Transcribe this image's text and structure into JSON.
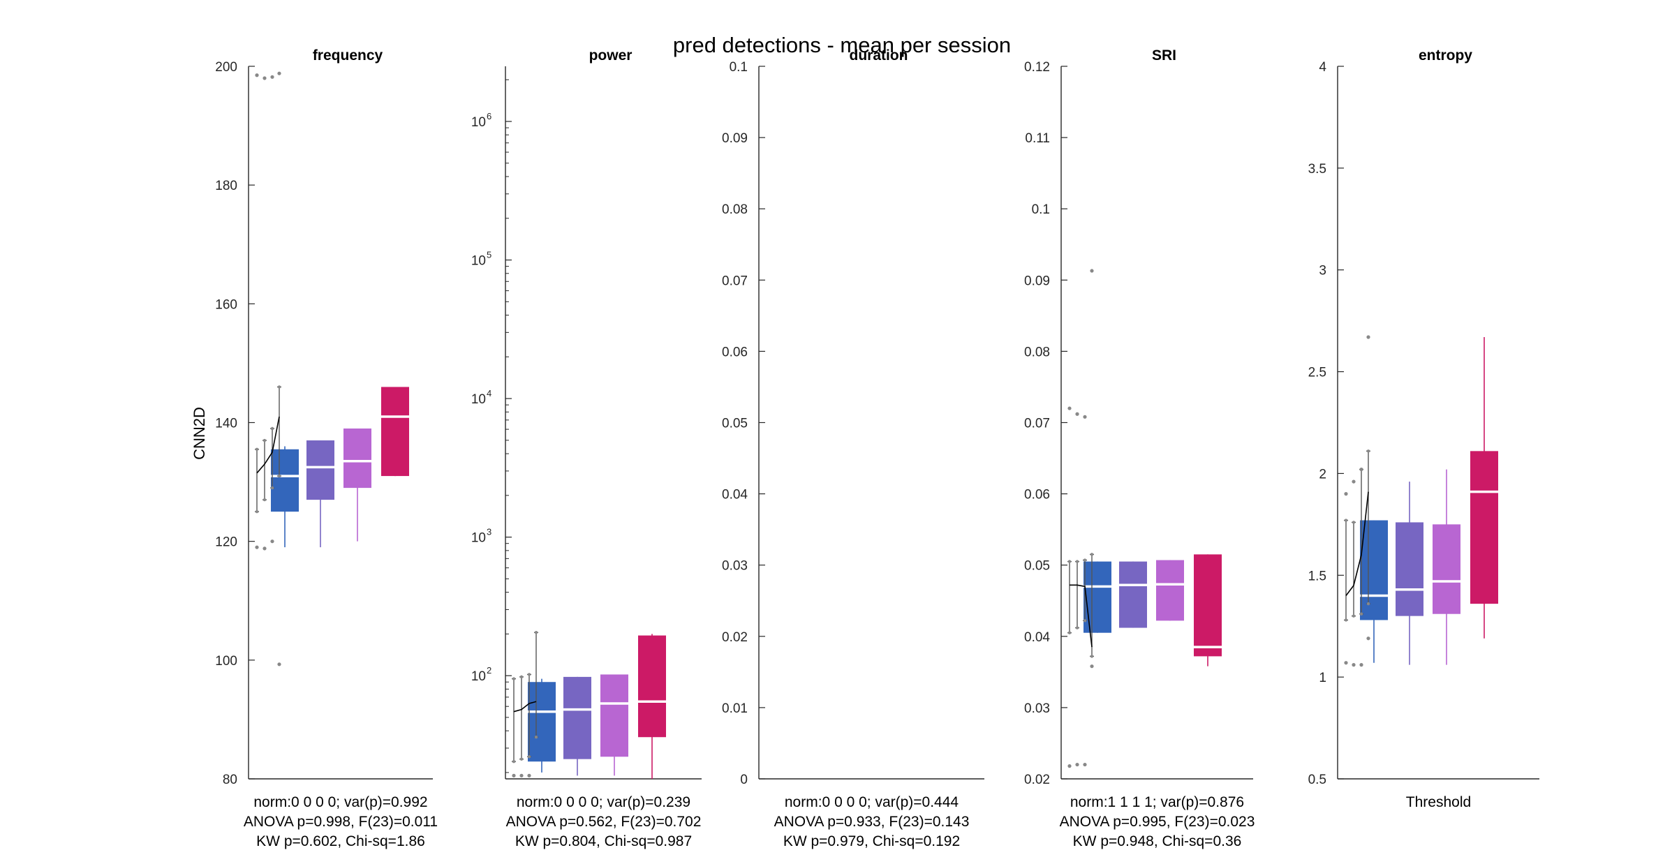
{
  "figure": {
    "title": "pred detections - mean per session",
    "ylabel": "CNN2D"
  },
  "colors": {
    "group1": "#3366bb",
    "group2": "#7766c2",
    "group3": "#b866d2",
    "group4": "#cc1a66",
    "axis": "#262626",
    "median": "#ffffff",
    "dots": "#888888"
  },
  "chart_data": [
    {
      "type": "box",
      "title": "frequency",
      "ylabel": "CNN2D",
      "scale": "linear",
      "ylim": [
        80,
        200
      ],
      "yticks": [
        80,
        100,
        120,
        140,
        160,
        180,
        200
      ],
      "ytick_labels": [
        "80",
        "100",
        "120",
        "140",
        "160",
        "180",
        "200"
      ],
      "boxes": [
        {
          "q1": 125,
          "median": 131,
          "q3": 135.5,
          "wlo": 119,
          "whi": 136
        },
        {
          "q1": 127,
          "median": 132.5,
          "q3": 137,
          "wlo": 119,
          "whi": 137
        },
        {
          "q1": 129,
          "median": 133.5,
          "q3": 139,
          "wlo": 120,
          "whi": 139
        },
        {
          "q1": 131,
          "median": 141,
          "q3": 146,
          "wlo": 131,
          "whi": 146
        }
      ],
      "session_errorbars": [
        {
          "lo": 125,
          "hi": 135.5
        },
        {
          "lo": 127,
          "hi": 137
        },
        {
          "lo": 129,
          "hi": 139
        },
        {
          "lo": 131,
          "hi": 146
        }
      ],
      "trend": [
        131.5,
        133,
        135,
        141
      ],
      "outliers": [
        {
          "g": 0,
          "y": 198.5
        },
        {
          "g": 1,
          "y": 198
        },
        {
          "g": 2,
          "y": 198.2
        },
        {
          "g": 3,
          "y": 198.8
        },
        {
          "g": 0,
          "y": 119
        },
        {
          "g": 1,
          "y": 118.8
        },
        {
          "g": 2,
          "y": 120
        },
        {
          "g": 3,
          "y": 99.3
        }
      ],
      "annotation": [
        "norm:0  0  0  0; var(p)=0.992",
        "ANOVA p=0.998, F(23)=0.011",
        "KW p=0.602, Chi-sq=1.86"
      ]
    },
    {
      "type": "box",
      "title": "power",
      "scale": "log",
      "ylim": [
        18,
        2500000
      ],
      "yticks": [
        100,
        1000,
        10000,
        100000,
        1000000
      ],
      "ytick_labels": [
        "10",
        "10",
        "10",
        "10",
        "10"
      ],
      "ytick_exponents": [
        "2",
        "3",
        "4",
        "5",
        "6"
      ],
      "boxes": [
        {
          "q1": 24,
          "median": 55,
          "q3": 90,
          "wlo": 20,
          "whi": 95
        },
        {
          "q1": 25,
          "median": 57,
          "q3": 98,
          "wlo": 19,
          "whi": 98
        },
        {
          "q1": 26,
          "median": 63,
          "q3": 102,
          "wlo": 19,
          "whi": 102
        },
        {
          "q1": 36,
          "median": 65,
          "q3": 195,
          "wlo": 18,
          "whi": 200
        }
      ],
      "session_errorbars": [
        {
          "lo": 24,
          "hi": 95
        },
        {
          "lo": 25,
          "hi": 98
        },
        {
          "lo": 26,
          "hi": 102
        },
        {
          "lo": 36,
          "hi": 205
        }
      ],
      "trend": [
        55,
        57,
        63,
        65
      ],
      "outliers": [
        {
          "g": 0,
          "y": 19
        },
        {
          "g": 1,
          "y": 19
        },
        {
          "g": 2,
          "y": 19
        }
      ],
      "annotation": [
        "norm:0  0  0  0; var(p)=0.239",
        "ANOVA p=0.562, F(23)=0.702",
        "KW p=0.804, Chi-sq=0.987"
      ]
    },
    {
      "type": "box",
      "title": "duration",
      "scale": "linear",
      "ylim": [
        0,
        0.1
      ],
      "yticks": [
        0,
        0.01,
        0.02,
        0.03,
        0.04,
        0.05,
        0.06,
        0.07,
        0.08,
        0.09,
        0.1
      ],
      "ytick_labels": [
        "0",
        "0.01",
        "0.02",
        "0.03",
        "0.04",
        "0.05",
        "0.06",
        "0.07",
        "0.08",
        "0.09",
        "0.1"
      ],
      "boxes": [],
      "session_errorbars": [],
      "trend": [],
      "outliers": [],
      "annotation": [
        "norm:0  0  0  0; var(p)=0.444",
        "ANOVA p=0.933, F(23)=0.143",
        "KW p=0.979, Chi-sq=0.192"
      ]
    },
    {
      "type": "box",
      "title": "SRI",
      "scale": "linear",
      "ylim": [
        0.02,
        0.12
      ],
      "yticks": [
        0.02,
        0.03,
        0.04,
        0.05,
        0.06,
        0.07,
        0.08,
        0.09,
        0.1,
        0.11,
        0.12
      ],
      "ytick_labels": [
        "0.02",
        "0.03",
        "0.04",
        "0.05",
        "0.06",
        "0.07",
        "0.08",
        "0.09",
        "0.1",
        "0.11",
        "0.12"
      ],
      "boxes": [
        {
          "q1": 0.0405,
          "median": 0.047,
          "q3": 0.0505,
          "wlo": 0.0405,
          "whi": 0.0505
        },
        {
          "q1": 0.0412,
          "median": 0.0472,
          "q3": 0.0505,
          "wlo": 0.0412,
          "whi": 0.0505
        },
        {
          "q1": 0.0422,
          "median": 0.0473,
          "q3": 0.0507,
          "wlo": 0.0422,
          "whi": 0.0507
        },
        {
          "q1": 0.0372,
          "median": 0.0385,
          "q3": 0.0515,
          "wlo": 0.0358,
          "whi": 0.0515
        }
      ],
      "session_errorbars": [
        {
          "lo": 0.0405,
          "hi": 0.0505
        },
        {
          "lo": 0.0412,
          "hi": 0.0505
        },
        {
          "lo": 0.0422,
          "hi": 0.0507
        },
        {
          "lo": 0.0372,
          "hi": 0.0515
        }
      ],
      "trend": [
        0.0472,
        0.0472,
        0.047,
        0.0385
      ],
      "outliers": [
        {
          "g": 0,
          "y": 0.072
        },
        {
          "g": 1,
          "y": 0.0712
        },
        {
          "g": 2,
          "y": 0.0708
        },
        {
          "g": 0,
          "y": 0.0218
        },
        {
          "g": 1,
          "y": 0.022
        },
        {
          "g": 2,
          "y": 0.022
        },
        {
          "g": 3,
          "y": 0.0913
        },
        {
          "g": 3,
          "y": 0.0358
        }
      ],
      "annotation": [
        "norm:1  1  1  1; var(p)=0.876",
        "ANOVA p=0.995, F(23)=0.023",
        "KW p=0.948, Chi-sq=0.36"
      ]
    },
    {
      "type": "box",
      "title": "entropy",
      "xlabel": "Threshold",
      "scale": "linear",
      "ylim": [
        0.5,
        4
      ],
      "yticks": [
        0.5,
        1,
        1.5,
        2,
        2.5,
        3,
        3.5,
        4
      ],
      "ytick_labels": [
        "0.5",
        "1",
        "1.5",
        "2",
        "2.5",
        "3",
        "3.5",
        "4"
      ],
      "boxes": [
        {
          "q1": 1.28,
          "median": 1.4,
          "q3": 1.77,
          "wlo": 1.07,
          "whi": 1.77
        },
        {
          "q1": 1.3,
          "median": 1.43,
          "q3": 1.76,
          "wlo": 1.06,
          "whi": 1.96
        },
        {
          "q1": 1.31,
          "median": 1.47,
          "q3": 1.75,
          "wlo": 1.06,
          "whi": 2.02
        },
        {
          "q1": 1.36,
          "median": 1.91,
          "q3": 2.11,
          "wlo": 1.19,
          "whi": 2.67
        }
      ],
      "session_errorbars": [
        {
          "lo": 1.28,
          "hi": 1.77
        },
        {
          "lo": 1.3,
          "hi": 1.76
        },
        {
          "lo": 1.31,
          "hi": 2.02
        },
        {
          "lo": 1.36,
          "hi": 2.11
        }
      ],
      "trend": [
        1.4,
        1.45,
        1.6,
        1.91
      ],
      "outliers": [
        {
          "g": 0,
          "y": 1.9
        },
        {
          "g": 1,
          "y": 1.96
        },
        {
          "g": 2,
          "y": 2.02
        },
        {
          "g": 0,
          "y": 1.07
        },
        {
          "g": 1,
          "y": 1.06
        },
        {
          "g": 2,
          "y": 1.06
        },
        {
          "g": 3,
          "y": 2.67
        },
        {
          "g": 3,
          "y": 1.19
        }
      ],
      "annotation": [],
      "xtick_label": "Threshold"
    }
  ]
}
